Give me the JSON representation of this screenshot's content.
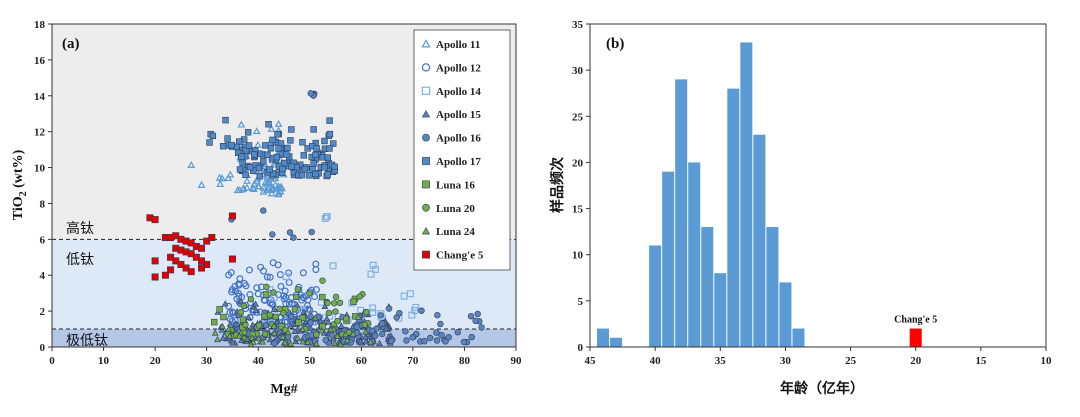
{
  "chart_data": [
    {
      "type": "scatter",
      "panel_label": "(a)",
      "xlabel": "Mg#",
      "ylabel_main": "TiO",
      "ylabel_sub": "2",
      "ylabel_tail": " (wt%)",
      "xlim": [
        0,
        90
      ],
      "ylim": [
        0,
        18
      ],
      "xticks": [
        "0",
        "10",
        "20",
        "30",
        "40",
        "50",
        "60",
        "70",
        "80",
        "90"
      ],
      "yticks": [
        "0",
        "2",
        "4",
        "6",
        "8",
        "10",
        "12",
        "14",
        "16",
        "18"
      ],
      "zones": [
        {
          "label": "高钛",
          "from": 6,
          "to": 18,
          "color": "#ededed"
        },
        {
          "label": "低钛",
          "from": 1,
          "to": 6,
          "color": "#dde9f6"
        },
        {
          "label": "极低钛",
          "from": 0,
          "to": 1,
          "color": "#b4c7e7"
        }
      ],
      "boundaries": [
        6,
        1
      ],
      "series": [
        {
          "name": "Apollo 11",
          "marker": "triangle-open",
          "color": "#5b9bd5",
          "count": 90
        },
        {
          "name": "Apollo 12",
          "marker": "circle-open",
          "color": "#4472c4",
          "count": 130
        },
        {
          "name": "Apollo 14",
          "marker": "square-open",
          "color": "#7fb2e5",
          "count": 45
        },
        {
          "name": "Apollo 15",
          "marker": "triangle-filled",
          "color": "#5b7fb0",
          "count": 180
        },
        {
          "name": "Apollo 16",
          "marker": "circle-filled",
          "color": "#5b84bd",
          "count": 110
        },
        {
          "name": "Apollo 17",
          "marker": "square-filled",
          "color": "#4f8ac7",
          "count": 130
        },
        {
          "name": "Luna 16",
          "marker": "square-filled",
          "color": "#70ad47",
          "count": 20
        },
        {
          "name": "Luna 20",
          "marker": "circle-filled",
          "color": "#70ad47",
          "count": 45
        },
        {
          "name": "Luna 24",
          "marker": "triangle-filled",
          "color": "#70ad47",
          "count": 40
        },
        {
          "name": "Chang'e 5",
          "marker": "square-filled",
          "color": "#e00000",
          "points": [
            [
              19,
              7.2
            ],
            [
              20,
              7.1
            ],
            [
              22,
              6.1
            ],
            [
              23,
              6.1
            ],
            [
              24,
              6.2
            ],
            [
              25,
              6.0
            ],
            [
              26,
              5.9
            ],
            [
              27,
              5.8
            ],
            [
              28,
              5.6
            ],
            [
              29,
              5.5
            ],
            [
              30,
              5.9
            ],
            [
              31,
              6.1
            ],
            [
              24,
              5.5
            ],
            [
              25,
              5.4
            ],
            [
              26,
              5.3
            ],
            [
              27,
              5.2
            ],
            [
              28,
              5.0
            ],
            [
              29,
              4.8
            ],
            [
              30,
              4.6
            ],
            [
              23,
              5.0
            ],
            [
              24,
              4.8
            ],
            [
              25,
              4.6
            ],
            [
              23,
              4.3
            ],
            [
              26,
              4.4
            ],
            [
              27,
              4.2
            ],
            [
              29,
              4.4
            ],
            [
              20,
              3.9
            ],
            [
              22,
              4.0
            ],
            [
              20,
              4.8
            ],
            [
              35,
              4.9
            ],
            [
              35,
              7.3
            ]
          ]
        }
      ]
    },
    {
      "type": "bar",
      "panel_label": "(b)",
      "xlabel": "年龄（亿年）",
      "ylabel": "样品频次",
      "xlim": [
        45,
        10
      ],
      "ylim": [
        0,
        35
      ],
      "xticks": [
        "45",
        "40",
        "35",
        "30",
        "25",
        "20",
        "15",
        "10"
      ],
      "yticks": [
        "0",
        "5",
        "10",
        "15",
        "20",
        "25",
        "30",
        "35"
      ],
      "bars": [
        {
          "age": 44,
          "count": 2
        },
        {
          "age": 43,
          "count": 1
        },
        {
          "age": 40,
          "count": 11
        },
        {
          "age": 39,
          "count": 19
        },
        {
          "age": 38,
          "count": 29
        },
        {
          "age": 37,
          "count": 20
        },
        {
          "age": 36,
          "count": 13
        },
        {
          "age": 35,
          "count": 8
        },
        {
          "age": 34,
          "count": 28
        },
        {
          "age": 33,
          "count": 33
        },
        {
          "age": 32,
          "count": 23
        },
        {
          "age": 31,
          "count": 13
        },
        {
          "age": 30,
          "count": 7
        },
        {
          "age": 29,
          "count": 2
        }
      ],
      "bar_color": "#5b9bd5",
      "highlight": {
        "age": 20,
        "count": 2,
        "label": "Chang'e 5",
        "color": "#ff0000"
      }
    }
  ]
}
